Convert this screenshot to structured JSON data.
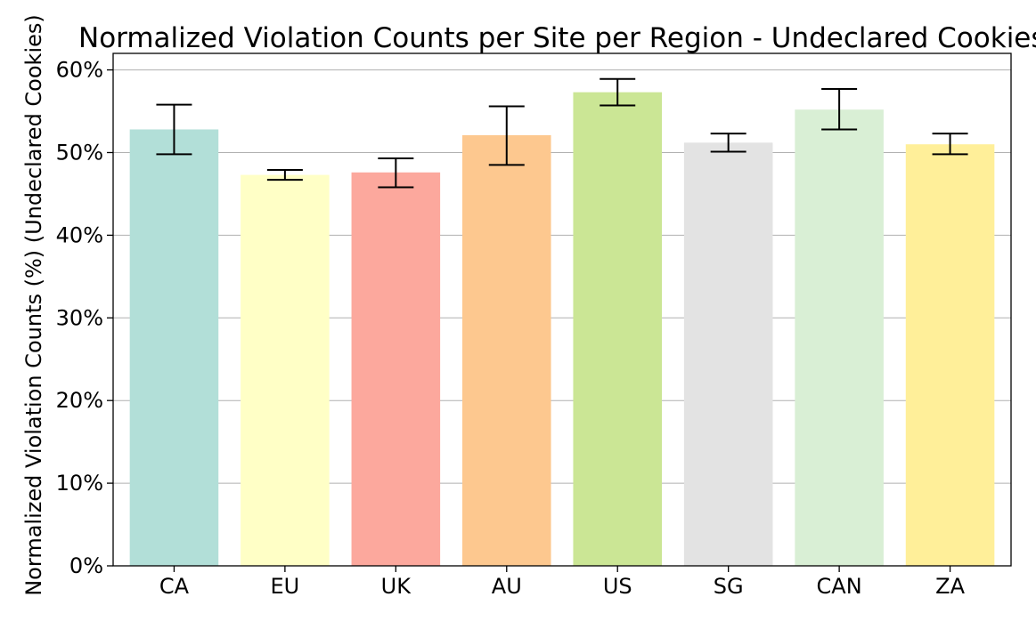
{
  "chart_data": {
    "type": "bar",
    "title": "Normalized Violation Counts per Site per Region - Undeclared Cookies",
    "xlabel": "",
    "ylabel": "Normalized Violation Counts (%) (Undeclared Cookies)",
    "categories": [
      "CA",
      "EU",
      "UK",
      "AU",
      "US",
      "SG",
      "CAN",
      "ZA"
    ],
    "values": [
      52.8,
      47.3,
      47.6,
      52.1,
      57.3,
      51.2,
      55.2,
      51.0
    ],
    "error_low": [
      49.8,
      46.7,
      45.8,
      48.5,
      55.7,
      50.1,
      52.8,
      49.8
    ],
    "error_high": [
      55.8,
      47.9,
      49.3,
      55.6,
      58.9,
      52.3,
      57.7,
      52.3
    ],
    "colors": [
      "#b2dfd8",
      "#ffffc6",
      "#fca89d",
      "#fdc88f",
      "#cbe695",
      "#e3e3e3",
      "#d9efd5",
      "#ffef99"
    ],
    "ylim": [
      0,
      62
    ],
    "yticks": [
      0,
      10,
      20,
      30,
      40,
      50,
      60
    ],
    "ytick_labels": [
      "0%",
      "10%",
      "20%",
      "30%",
      "40%",
      "50%",
      "60%"
    ],
    "grid": "horizontal",
    "legend": "none"
  }
}
